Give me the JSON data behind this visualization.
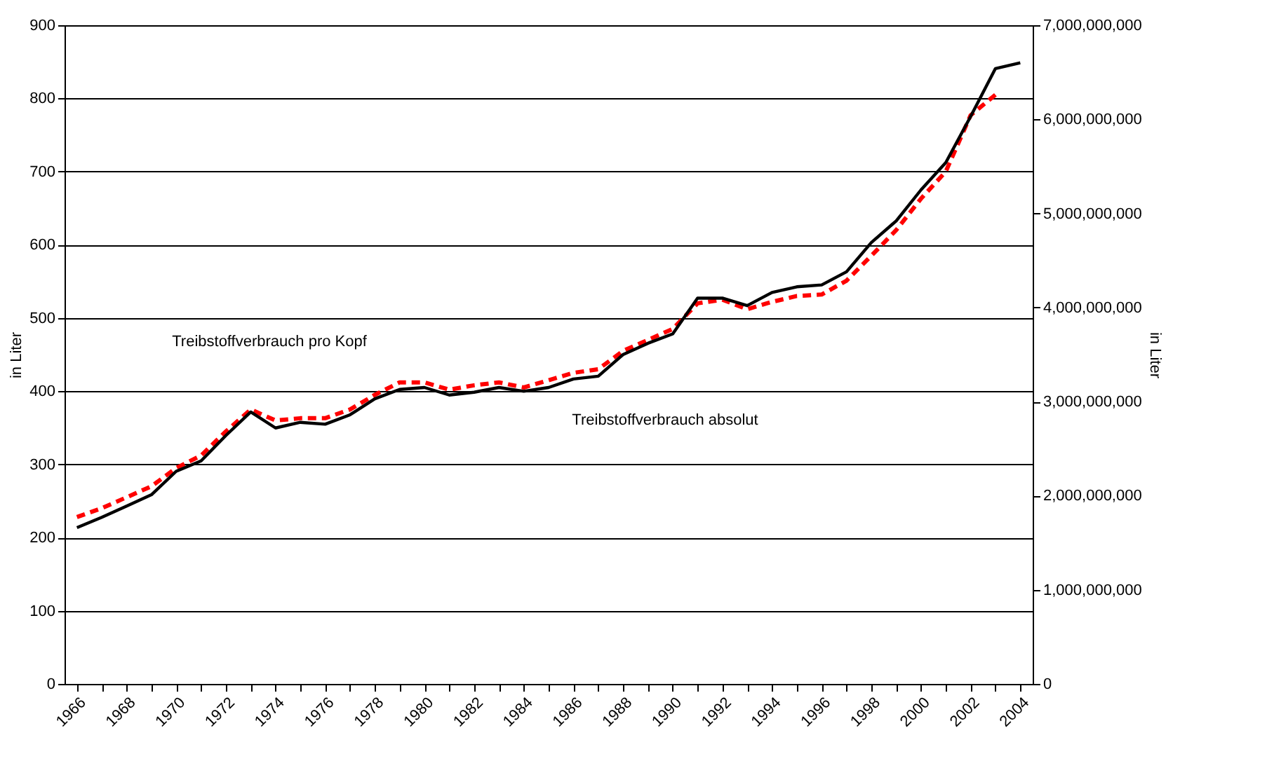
{
  "chart_data": {
    "type": "line",
    "categories": [
      "1966",
      null,
      "1968",
      null,
      "1970",
      null,
      "1972",
      null,
      "1974",
      null,
      "1976",
      null,
      "1978",
      null,
      "1980",
      null,
      "1982",
      null,
      "1984",
      null,
      "1986",
      null,
      "1988",
      null,
      "1990",
      null,
      "1992",
      null,
      "1994",
      null,
      "1996",
      null,
      "1998",
      null,
      "2000",
      null,
      "2002",
      null,
      "2004"
    ],
    "series": [
      {
        "color": "#ff0000",
        "line_style": "dashed",
        "axis": "y",
        "values": [
          228,
          240,
          255,
          270,
          295,
          312,
          345,
          375,
          360,
          363,
          363,
          375,
          395,
          412,
          412,
          402,
          408,
          412,
          405,
          415,
          425,
          430,
          455,
          470,
          485,
          520,
          525,
          512,
          522,
          530,
          532,
          551,
          585,
          620,
          663,
          700,
          777,
          805,
          null
        ]
      },
      {
        "color": "#000000",
        "line_style": "solid",
        "axis": "y2",
        "values": [
          1660000000,
          1770000000,
          1890000000,
          2010000000,
          2260000000,
          2370000000,
          2640000000,
          2890000000,
          2720000000,
          2780000000,
          2760000000,
          2860000000,
          3030000000,
          3130000000,
          3150000000,
          3070000000,
          3100000000,
          3150000000,
          3110000000,
          3150000000,
          3240000000,
          3270000000,
          3500000000,
          3620000000,
          3720000000,
          4100000000,
          4100000000,
          4020000000,
          4160000000,
          4220000000,
          4240000000,
          4380000000,
          4690000000,
          4920000000,
          5250000000,
          5540000000,
          6030000000,
          6540000000,
          6600000000
        ]
      }
    ],
    "ylabel": "in Liter",
    "y2label": "in Liter",
    "ylim": [
      0,
      900
    ],
    "yticks": [
      0,
      100,
      200,
      300,
      400,
      500,
      600,
      700,
      800,
      900
    ],
    "y2lim": [
      0,
      7000000000
    ],
    "y2ticks": [
      {
        "value": 0,
        "label": "0"
      },
      {
        "value": 1000000000,
        "label": "1,000,000,000"
      },
      {
        "value": 2000000000,
        "label": "2,000,000,000"
      },
      {
        "value": 3000000000,
        "label": "3,000,000,000"
      },
      {
        "value": 4000000000,
        "label": "4,000,000,000"
      },
      {
        "value": 5000000000,
        "label": "5,000,000,000"
      },
      {
        "value": 6000000000,
        "label": "6,000,000,000"
      },
      {
        "value": 7000000000,
        "label": "7,000,000,000"
      }
    ],
    "grid": "y",
    "annotations": [
      "Treibstoffverbrauch pro Kopf",
      "Treibstoffverbrauch absolut"
    ]
  }
}
